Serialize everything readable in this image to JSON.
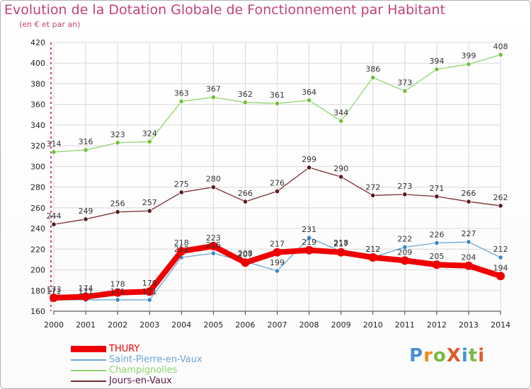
{
  "header": {
    "title": "Evolution de la Dotation Globale de Fonctionnement par Habitant",
    "subtitle": "(en € et par an)"
  },
  "logo": {
    "text": "ProXiti",
    "colors": [
      "#4a8fd6",
      "#f08a1e",
      "#7ab843",
      "#e05a2a",
      "#4a8fd6",
      "#7ab843",
      "#e05a2a"
    ]
  },
  "chart_data": {
    "type": "line",
    "x": [
      "2000",
      "2001",
      "2002",
      "2003",
      "2004",
      "2005",
      "2006",
      "2007",
      "2008",
      "2009",
      "2010",
      "2011",
      "2012",
      "2013",
      "2014"
    ],
    "ylim": [
      160,
      420
    ],
    "yticks": [
      160,
      180,
      200,
      220,
      240,
      260,
      280,
      300,
      320,
      340,
      360,
      380,
      400,
      420
    ],
    "grid": true,
    "legend_position": "bottom-left",
    "series": [
      {
        "name": "Champignolles",
        "color": "#8ed46a",
        "marker": "#6cc23a",
        "values": [
          314,
          316,
          323,
          324,
          363,
          367,
          362,
          361,
          364,
          344,
          386,
          373,
          394,
          399,
          408
        ]
      },
      {
        "name": "Jours-en-Vaux",
        "color": "#7a2e33",
        "marker": "#5c1a1e",
        "values": [
          244,
          249,
          256,
          257,
          275,
          280,
          266,
          276,
          299,
          290,
          272,
          273,
          271,
          266,
          262
        ]
      },
      {
        "name": "Saint-Pierre-en-Vaux",
        "color": "#6aa7d6",
        "marker": "#3a86c8",
        "values": [
          171,
          171,
          171,
          171,
          212,
          216,
          208,
          199,
          231,
          218,
          212,
          222,
          226,
          227,
          212
        ]
      },
      {
        "name": "THURY",
        "color": "#ee0000",
        "marker": "#ee0000",
        "values": [
          173,
          174,
          178,
          179,
          218,
          223,
          207,
          217,
          219,
          217,
          212,
          209,
          205,
          204,
          194
        ]
      }
    ],
    "legend_order": [
      "THURY",
      "Saint-Pierre-en-Vaux",
      "Champignolles",
      "Jours-en-Vaux"
    ]
  }
}
